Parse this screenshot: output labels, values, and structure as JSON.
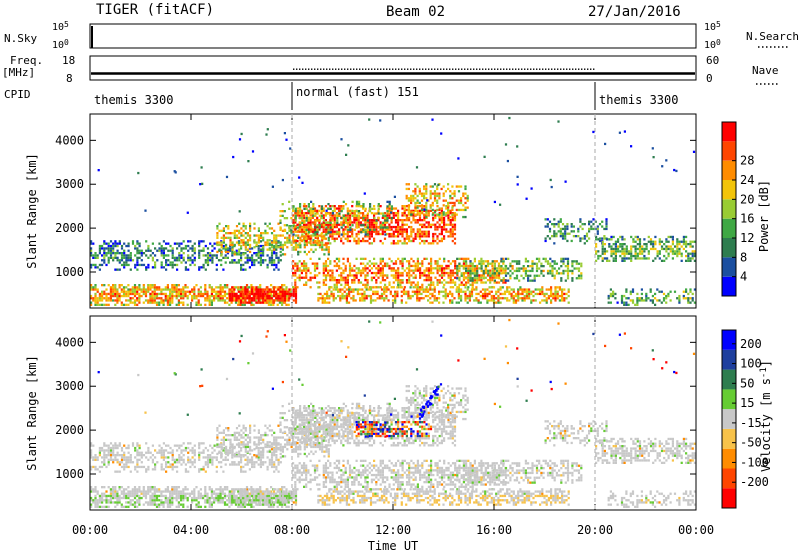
{
  "header": {
    "radio_title": "TIGER (fitACF)",
    "beam": "Beam 02",
    "date": "27/Jan/2016"
  },
  "labels": {
    "nsky": "N.Sky",
    "freq": "Freq.",
    "mhz": "[MHz]",
    "cpid": "CPID",
    "nsearch": "N.Search",
    "nave": "Nave",
    "nsky_ticks": [
      "10^5",
      "10^0"
    ],
    "nsearch_ticks": [
      "10^5",
      "10^0"
    ],
    "freq_ticks": [
      "18",
      "8"
    ],
    "nave_ticks": [
      "60",
      "0"
    ]
  },
  "cpid_segments": [
    {
      "label": "themis 3300",
      "start_hour": 0,
      "end_hour": 8
    },
    {
      "label": "normal (fast) 151",
      "start_hour": 8,
      "end_hour": 20
    },
    {
      "label": "themis 3300",
      "start_hour": 20,
      "end_hour": 24
    }
  ],
  "colors": {
    "power": [
      "#0000ff",
      "#1b4fa0",
      "#2e7d4f",
      "#3fa844",
      "#99cc33",
      "#f2c40a",
      "#ff8c00",
      "#ff4500",
      "#ff0000"
    ],
    "velocity": [
      "#0000ff",
      "#1e3f9e",
      "#2e7d4f",
      "#66cc33",
      "#c8c8c8",
      "#f7c24a",
      "#ff8c00",
      "#ff4500",
      "#ff0000"
    ]
  },
  "chart_data": [
    {
      "type": "heatmap",
      "name": "power",
      "ylabel": "Slant Range [km]",
      "ylim": [
        180,
        4600
      ],
      "yticks": [
        "1000",
        "2000",
        "3000",
        "4000"
      ],
      "xlim": [
        0,
        24
      ],
      "colorbar_label": "Power [dB]",
      "colorbar_ticks": [
        "4",
        "8",
        "12",
        "16",
        "20",
        "24",
        "28"
      ],
      "colorbar_range": [
        0,
        32
      ]
    },
    {
      "type": "heatmap",
      "name": "velocity",
      "ylabel": "Slant Range [km]",
      "ylim": [
        180,
        4600
      ],
      "yticks": [
        "1000",
        "2000",
        "3000",
        "4000"
      ],
      "xlim": [
        0,
        24
      ],
      "xlabel": "Time UT",
      "xticks": [
        "00:00",
        "04:00",
        "08:00",
        "12:00",
        "16:00",
        "20:00",
        "00:00"
      ],
      "colorbar_label": "Velocity [m s^-1]",
      "colorbar_ticks": [
        "200",
        "100",
        "50",
        "15",
        "-15",
        "-50",
        "-100",
        "-200"
      ]
    }
  ]
}
